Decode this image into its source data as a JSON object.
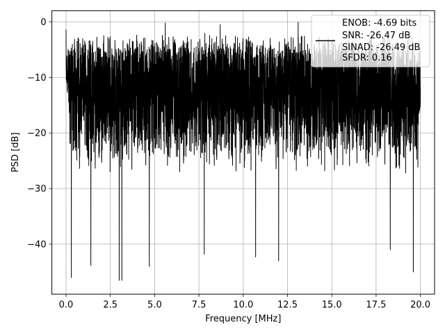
{
  "chart_data": {
    "type": "line",
    "title": "",
    "xlabel": "Frequency [MHz]",
    "ylabel": "PSD [dB]",
    "xlim": [
      -0.8,
      20.8
    ],
    "ylim": [
      -49,
      2
    ],
    "xticks": [
      0.0,
      2.5,
      5.0,
      7.5,
      10.0,
      12.5,
      15.0,
      17.5,
      20.0
    ],
    "xtick_labels": [
      "0.0",
      "2.5",
      "5.0",
      "7.5",
      "10.0",
      "12.5",
      "15.0",
      "17.5",
      "20.0"
    ],
    "yticks": [
      0,
      -10,
      -20,
      -30,
      -40
    ],
    "ytick_labels": [
      "0",
      "−10",
      "−20",
      "−30",
      "−40"
    ],
    "grid": true,
    "legend_position": "top-right",
    "legend_lines": [
      "ENOB: -4.69 bits",
      "SNR: -26.47 dB",
      "SINAD: -26.49 dB",
      "SFDR: 0.16"
    ],
    "line_color": "#000000",
    "series_summary": {
      "x_start": 0.0,
      "x_end": 20.0,
      "typical_upper_envelope_db": -5,
      "typical_lower_envelope_db": -25,
      "peak_max_db": -0.1,
      "initial_spike_db": -1.4,
      "notable_peaks": [
        {
          "x": 5.6,
          "y": -0.2
        },
        {
          "x": 8.7,
          "y": -0.5
        },
        {
          "x": 13.1,
          "y": -0.1
        }
      ],
      "notable_dips": [
        {
          "x": 0.3,
          "y": -46.0
        },
        {
          "x": 3.0,
          "y": -46.5
        },
        {
          "x": 3.15,
          "y": -46.5
        },
        {
          "x": 4.7,
          "y": -44.0
        },
        {
          "x": 1.4,
          "y": -43.8
        },
        {
          "x": 7.8,
          "y": -41.8
        },
        {
          "x": 10.7,
          "y": -42.3
        },
        {
          "x": 12.0,
          "y": -43.0
        },
        {
          "x": 19.6,
          "y": -45.0
        },
        {
          "x": 18.3,
          "y": -41.0
        }
      ]
    }
  }
}
